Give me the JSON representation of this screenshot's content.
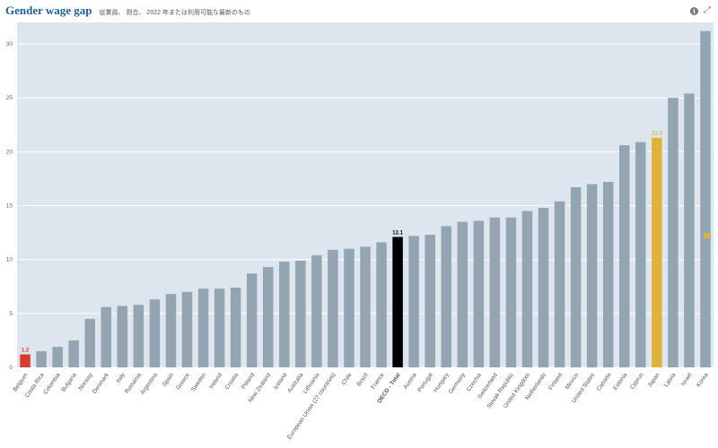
{
  "header": {
    "title": "Gender wage gap",
    "subtitle": "従業員、 割合、 2022 年または利用可能な最新のもの"
  },
  "icons": {
    "info": "info-icon",
    "expand": "expand-icon"
  },
  "colors": {
    "plot_bg": "#dde6ee",
    "bar_default": "#93a5b3",
    "bar_oecd": "#000000",
    "bar_belgium": "#d63b2f",
    "bar_japan": "#e0b23c",
    "label_belgium": "#d63b2f",
    "label_japan": "#e0b23c",
    "label_oecd": "#000000"
  },
  "chart_data": {
    "type": "bar",
    "title": "Gender wage gap",
    "subtitle": "従業員、 割合、 2022 年または利用可能な最新のもの",
    "ylim": [
      0,
      32
    ],
    "yticks": [
      0,
      5,
      10,
      15,
      20,
      25,
      30
    ],
    "grid": true,
    "categories": [
      "Belgium",
      "Costa Rica",
      "Colombia",
      "Bulgaria",
      "Norway",
      "Denmark",
      "Italy",
      "Romania",
      "Argentina",
      "Spain",
      "Greece",
      "Sweden",
      "Ireland",
      "Croatia",
      "Poland",
      "New Zealand",
      "Iceland",
      "Australia",
      "Lithuania",
      "European Union (27 countries)",
      "Chile",
      "Brazil",
      "France",
      "OECD - Total",
      "Austria",
      "Portugal",
      "Hungary",
      "Germany",
      "Czechia",
      "Switzerland",
      "Slovak Republic",
      "United Kingdom",
      "Netherlands",
      "Finland",
      "Mexico",
      "United States",
      "Canada",
      "Estonia",
      "Cyprus",
      "Japan",
      "Latvia",
      "Israel",
      "Korea"
    ],
    "values": [
      1.2,
      1.5,
      1.9,
      2.5,
      4.5,
      5.6,
      5.7,
      5.8,
      6.3,
      6.8,
      7.0,
      7.3,
      7.3,
      7.4,
      8.7,
      9.3,
      9.8,
      9.9,
      10.4,
      10.9,
      11.0,
      11.2,
      11.6,
      12.1,
      12.2,
      12.3,
      13.1,
      13.5,
      13.6,
      13.9,
      13.9,
      14.5,
      14.8,
      15.4,
      16.7,
      17.0,
      17.2,
      20.6,
      20.9,
      21.3,
      25.0,
      25.4,
      31.2
    ],
    "highlights": {
      "Belgium": "bar_belgium",
      "OECD - Total": "bar_oecd",
      "Japan": "bar_japan"
    },
    "data_labels": [
      {
        "category": "Belgium",
        "text": "1.2"
      },
      {
        "category": "OECD - Total",
        "text": "12.1"
      },
      {
        "category": "Japan",
        "text": "21.3"
      }
    ]
  }
}
